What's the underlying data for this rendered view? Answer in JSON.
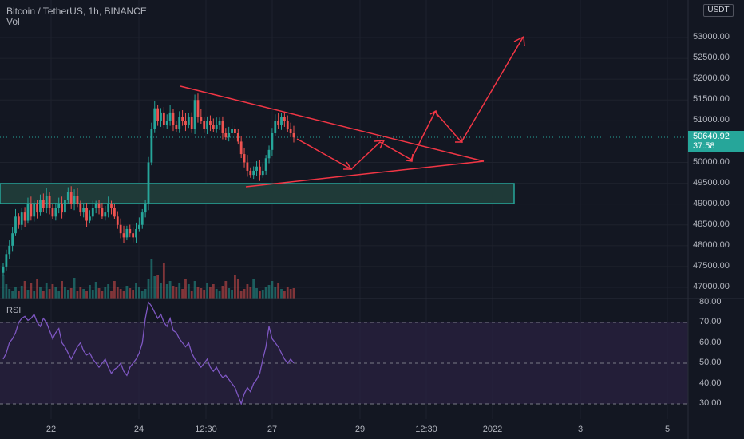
{
  "header": {
    "symbol": "Bitcoin / TetherUS, 1h, BINANCE",
    "volume_label": "Vol"
  },
  "currency_badge": "USDT",
  "price_tag": {
    "price": "50640.92",
    "countdown": "37:58"
  },
  "rsi_label": "RSI",
  "y_axis_ticks": [
    "53000.00",
    "52500.00",
    "52000.00",
    "51500.00",
    "51000.00",
    "50000.00",
    "49500.00",
    "49000.00",
    "48500.00",
    "48000.00",
    "47500.00",
    "47000.00"
  ],
  "rsi_axis_ticks": [
    "80.00",
    "70.00",
    "60.00",
    "50.00",
    "40.00",
    "30.00"
  ],
  "x_axis_ticks": [
    "22",
    "24",
    "12:30",
    "27",
    "29",
    "12:30",
    "2022",
    "3",
    "5"
  ],
  "colors": {
    "background": "#131722",
    "up": "#26a69a",
    "down": "#ef5350",
    "drawing": "#f23645",
    "rsi_line": "#7e57c2",
    "rsi_band": "#2a2140",
    "zone_fill": "#1f3a38",
    "zone_border": "#26a69a"
  },
  "chart_data": {
    "type": "candlestick",
    "price_range": [
      46900,
      53300
    ],
    "rsi_range": [
      28,
      81
    ],
    "rsi_levels": [
      70,
      50,
      30
    ],
    "support_zone": [
      49000,
      49500
    ],
    "candle_closes": [
      47500,
      47800,
      48000,
      48300,
      48700,
      48500,
      48800,
      48600,
      49000,
      48700,
      49000,
      48800,
      49100,
      48900,
      49200,
      48900,
      48700,
      48900,
      49000,
      48800,
      49100,
      49300,
      49000,
      49200,
      49000,
      48800,
      48900,
      48600,
      48700,
      48900,
      49000,
      48900,
      48700,
      48800,
      49000,
      48900,
      48700,
      48500,
      48300,
      48200,
      48400,
      48300,
      48200,
      48400,
      48500,
      48800,
      49000,
      50000,
      50800,
      51300,
      51000,
      51200,
      50900,
      51000,
      51200,
      50900,
      50800,
      51100,
      51000,
      50900,
      51100,
      50800,
      51500,
      51100,
      51000,
      50800,
      51000,
      50900,
      50800,
      50900,
      51000,
      50700,
      50600,
      50700,
      50800,
      50700,
      50500,
      50200,
      50000,
      49800,
      49700,
      49800,
      49900,
      49700,
      49800,
      50100,
      50300,
      50700,
      51000,
      50900,
      51100,
      51000,
      50800,
      50700,
      50600
    ],
    "rsi_values": [
      52,
      55,
      60,
      62,
      65,
      70,
      72,
      73,
      71,
      72,
      74,
      70,
      68,
      72,
      70,
      66,
      62,
      65,
      67,
      60,
      58,
      55,
      52,
      55,
      58,
      60,
      56,
      54,
      55,
      52,
      50,
      48,
      50,
      52,
      48,
      45,
      47,
      48,
      50,
      46,
      44,
      48,
      50,
      52,
      55,
      60,
      72,
      80,
      78,
      75,
      72,
      74,
      70,
      68,
      72,
      66,
      65,
      62,
      60,
      58,
      60,
      55,
      52,
      50,
      48,
      50,
      52,
      48,
      46,
      48,
      45,
      43,
      44,
      42,
      40,
      38,
      34,
      30,
      35,
      38,
      36,
      40,
      42,
      45,
      52,
      58,
      68,
      62,
      60,
      58,
      55,
      52,
      50,
      52,
      50
    ],
    "volume_values": [
      30,
      18,
      12,
      10,
      14,
      9,
      16,
      22,
      11,
      19,
      10,
      25,
      15,
      9,
      20,
      12,
      18,
      14,
      10,
      22,
      15,
      11,
      13,
      26,
      9,
      14,
      12,
      10,
      17,
      11,
      21,
      13,
      9,
      15,
      18,
      10,
      22,
      14,
      12,
      9,
      16,
      13,
      11,
      19,
      15,
      10,
      12,
      24,
      50,
      28,
      30,
      20,
      45,
      18,
      22,
      16,
      14,
      20,
      12,
      25,
      18,
      10,
      22,
      15,
      13,
      11,
      20,
      14,
      18,
      12,
      10,
      16,
      22,
      13,
      11,
      30,
      25,
      10,
      12,
      18,
      15,
      24,
      13,
      9,
      11,
      15,
      17,
      22,
      14,
      19,
      12,
      10,
      15,
      12,
      13
    ],
    "drawing_triangle": {
      "upper_start": [
        94,
        52150
      ],
      "lower_start": [
        148,
        49450
      ],
      "apex": [
        292,
        50000
      ]
    }
  }
}
